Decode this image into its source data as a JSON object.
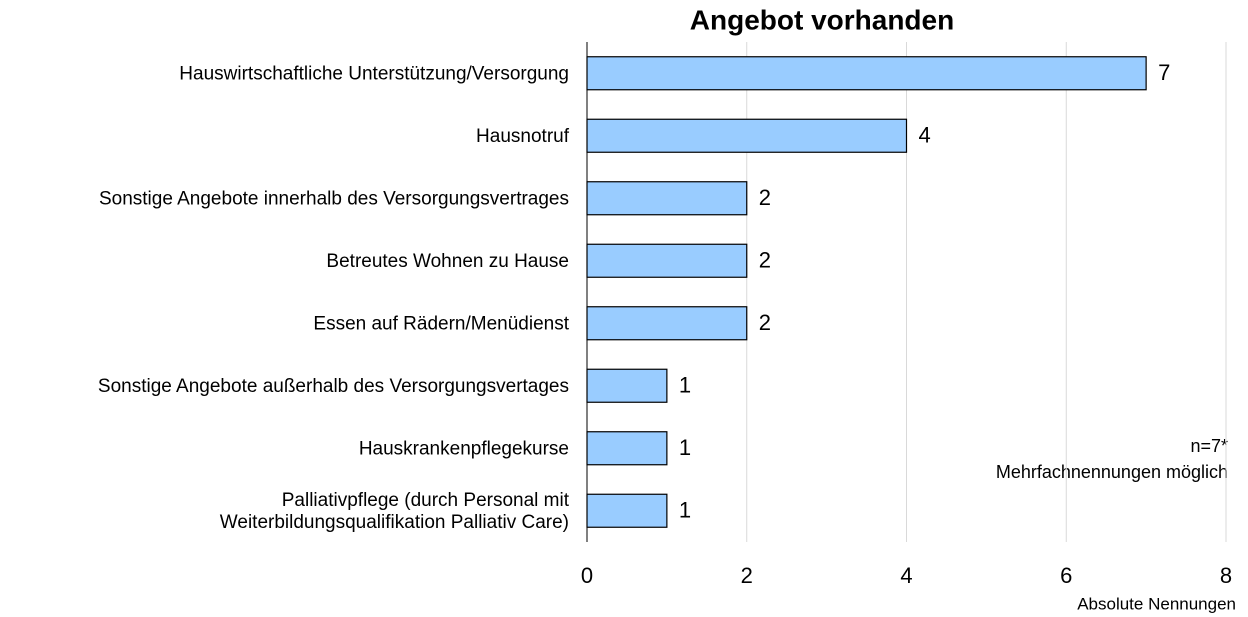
{
  "chart_data": {
    "type": "barh",
    "title": "Angebot vorhanden",
    "categories": [
      "Hauswirtschaftliche Unterstützung/Versorgung",
      "Hausnotruf",
      "Sonstige Angebote innerhalb des Versorgungsvertrages",
      "Betreutes Wohnen zu Hause",
      "Essen auf Rädern/Menüdienst",
      "Sonstige Angebote außerhalb des Versorgungsvertages",
      "Hauskrankenpflegekurse",
      "Palliativpflege (durch Personal mit\nWeiterbildungsqualifikation Palliativ Care)"
    ],
    "values": [
      7,
      4,
      2,
      2,
      2,
      1,
      1,
      1
    ],
    "color": "#99ccff",
    "xlim": [
      0,
      8
    ],
    "xticks": [
      0,
      2,
      4,
      6,
      8
    ],
    "grid": true,
    "xlabel": "Absolute Nennungen",
    "annotations": [
      "n=7*",
      "Mehrfachnennungen möglich"
    ]
  }
}
